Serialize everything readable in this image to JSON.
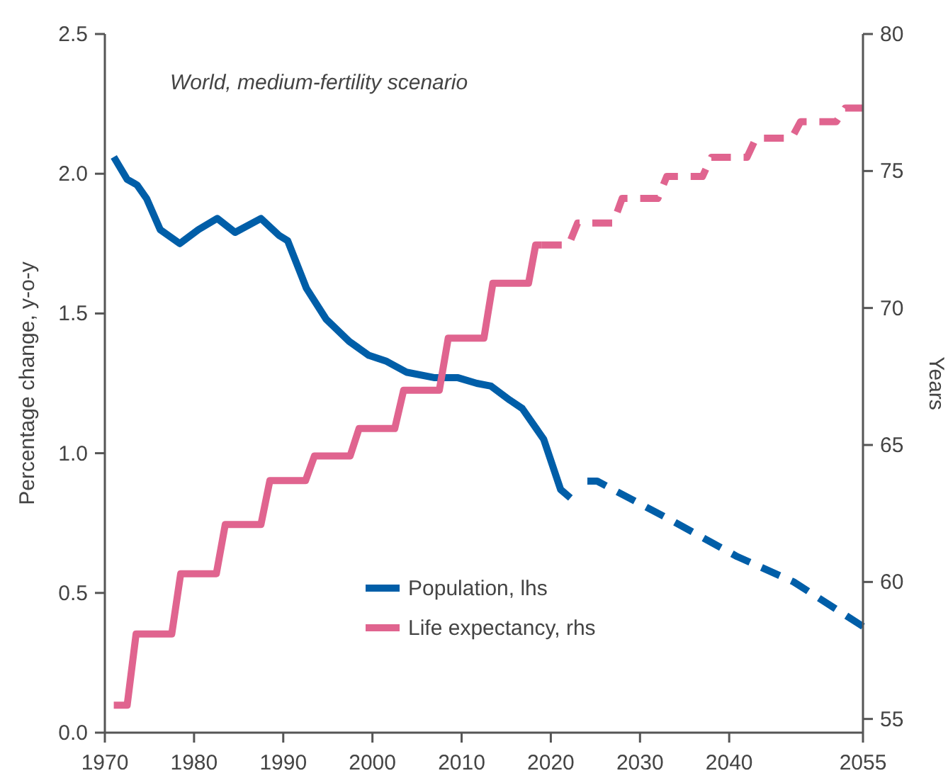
{
  "chart_data": {
    "type": "line",
    "ylabel": "Percentage change, y-o-y",
    "y2label": "Years",
    "annotations": [
      "World, medium-fertility scenario"
    ],
    "xlim": [
      1970,
      2055
    ],
    "xticks": [
      1970,
      1980,
      1990,
      2000,
      2010,
      2020,
      2030,
      2040,
      2055
    ],
    "ylim": [
      0,
      2.5
    ],
    "yticks": [
      {
        "value": 0,
        "label": "0.0"
      },
      {
        "value": 0.5,
        "label": "0.5"
      },
      {
        "value": 1,
        "label": "1.0"
      },
      {
        "value": 1.5,
        "label": "1.5"
      },
      {
        "value": 2,
        "label": "2.0"
      },
      {
        "value": 2.5,
        "label": "2.5"
      }
    ],
    "y2lim": [
      54.5,
      80
    ],
    "y2ticks": [
      55,
      60,
      65,
      70,
      75,
      80
    ],
    "legend": "bottom",
    "series": [
      {
        "name": "Population, lhs",
        "color": "#005ea8",
        "line_style": "solid",
        "x": [
          1971,
          1972.5,
          1973.6,
          1974.7,
          1976.2,
          1978.4,
          1980.5,
          1982.6,
          1984.6,
          1987.5,
          1989.5,
          1990.5,
          1992.6,
          1994.8,
          1997.4,
          1999.6,
          2001.5,
          2003.8,
          2007,
          2009.6,
          2011.7,
          2013.3,
          2015.4,
          2016.8,
          2019.2,
          2021.1,
          2022.2
        ],
        "values": [
          2.06,
          1.98,
          1.96,
          1.91,
          1.8,
          1.75,
          1.8,
          1.84,
          1.79,
          1.84,
          1.78,
          1.76,
          1.59,
          1.48,
          1.4,
          1.35,
          1.33,
          1.29,
          1.27,
          1.27,
          1.25,
          1.24,
          1.19,
          1.16,
          1.05,
          0.87,
          0.84
        ]
      },
      {
        "color": "#005ea8",
        "line_style": "dashed",
        "x": [
          2024.1,
          2025.2,
          2033.5,
          2040.9,
          2047.2,
          2055
        ],
        "values": [
          0.9,
          0.9,
          0.76,
          0.63,
          0.54,
          0.38
        ]
      },
      {
        "name": "Life expectancy, rhs",
        "color": "#e0648f",
        "axis": "y2",
        "line_style": "solid",
        "x": [
          1971,
          1972.5,
          1973.5,
          1977.5,
          1978.5,
          1982.5,
          1983.5,
          1987.5,
          1988.5,
          1992.5,
          1993.5,
          1997.5,
          1998.5,
          2002.5,
          2003.5,
          2007.5,
          2008.5,
          2012.5,
          2013.5,
          2017.5,
          2018.3,
          2019
        ],
        "values": [
          55.5,
          55.5,
          58.1,
          58.1,
          60.3,
          60.3,
          62.1,
          62.1,
          63.7,
          63.7,
          64.6,
          64.6,
          65.6,
          65.6,
          67.0,
          67.0,
          68.9,
          68.9,
          70.9,
          70.9,
          72.3,
          72.3
        ]
      },
      {
        "color": "#e0648f",
        "axis": "y2",
        "line_style": "dashed",
        "x": [
          2019,
          2022,
          2023,
          2027,
          2028,
          2032,
          2033,
          2037,
          2038,
          2042,
          2043,
          2047,
          2048,
          2052,
          2053,
          2055
        ],
        "values": [
          72.3,
          72.3,
          73.1,
          73.1,
          74.0,
          74.0,
          74.8,
          74.8,
          75.5,
          75.5,
          76.2,
          76.2,
          76.8,
          76.8,
          77.3,
          77.3
        ]
      }
    ]
  }
}
